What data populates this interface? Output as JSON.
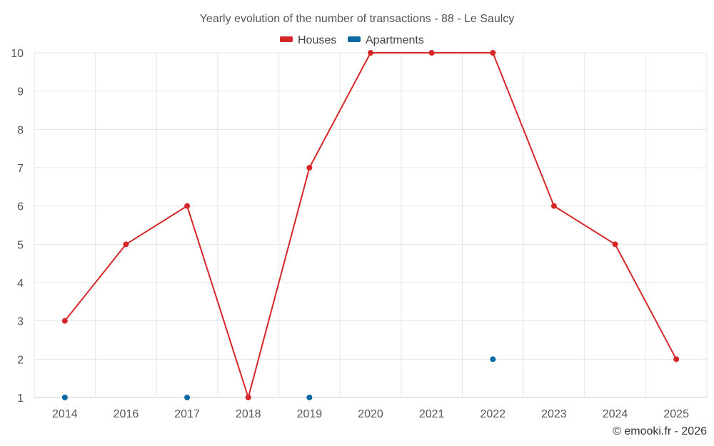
{
  "chart_data": {
    "type": "line",
    "title": "Yearly evolution of the number of transactions - 88 - Le Saulcy",
    "categories": [
      "2014",
      "2016",
      "2017",
      "2018",
      "2019",
      "2020",
      "2021",
      "2022",
      "2023",
      "2024",
      "2025"
    ],
    "series": [
      {
        "name": "Houses",
        "color": "#d62728",
        "values": [
          3,
          5,
          6,
          1,
          7,
          10,
          10,
          10,
          6,
          5,
          2
        ]
      },
      {
        "name": "Apartments",
        "color": "#0b6aa2",
        "values": [
          1,
          null,
          1,
          null,
          1,
          null,
          null,
          2,
          null,
          null,
          null
        ]
      }
    ],
    "ylim": [
      1,
      10
    ],
    "yticks": [
      1,
      2,
      3,
      4,
      5,
      6,
      7,
      8,
      9,
      10
    ],
    "grid": true,
    "legend": "top-center",
    "xlabel": "",
    "ylabel": ""
  },
  "credit": "© emooki.fr - 2026"
}
